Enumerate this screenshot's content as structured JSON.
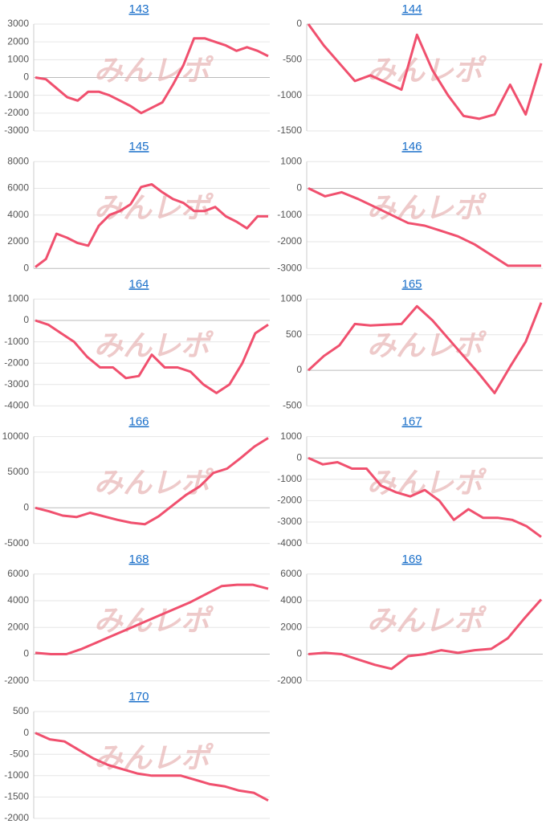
{
  "watermark": "みんレポ",
  "chart_data": [
    {
      "type": "line",
      "title": "143",
      "color": "#f0506e",
      "grid": true,
      "ylim": [
        -3000,
        3000
      ],
      "yticks": [
        3000,
        2000,
        1000,
        0,
        -1000,
        -2000,
        -3000
      ],
      "values": [
        0,
        -100,
        -600,
        -1100,
        -1300,
        -800,
        -800,
        -1000,
        -1300,
        -1600,
        -2000,
        -1700,
        -1400,
        -400,
        700,
        2200,
        2200,
        2000,
        1800,
        1500,
        1700,
        1500,
        1200
      ]
    },
    {
      "type": "line",
      "title": "144",
      "color": "#f0506e",
      "grid": true,
      "ylim": [
        -1500,
        0
      ],
      "yticks": [
        0,
        -500,
        -1000,
        -1500
      ],
      "values": [
        0,
        -300,
        -550,
        -800,
        -720,
        -820,
        -920,
        -150,
        -650,
        -1000,
        -1290,
        -1330,
        -1270,
        -850,
        -1270,
        -550
      ]
    },
    {
      "type": "line",
      "title": "145",
      "color": "#f0506e",
      "grid": true,
      "ylim": [
        0,
        8000
      ],
      "yticks": [
        8000,
        6000,
        4000,
        2000,
        0
      ],
      "values": [
        100,
        700,
        2600,
        2300,
        1900,
        1700,
        3200,
        4000,
        4300,
        4800,
        6100,
        6300,
        5700,
        5200,
        4900,
        4300,
        4300,
        4600,
        3900,
        3500,
        3000,
        3900,
        3900
      ]
    },
    {
      "type": "line",
      "title": "146",
      "color": "#f0506e",
      "grid": true,
      "ylim": [
        -3000,
        1000
      ],
      "yticks": [
        1000,
        0,
        -1000,
        -2000,
        -3000
      ],
      "values": [
        0,
        -300,
        -150,
        -400,
        -700,
        -1000,
        -1300,
        -1400,
        -1600,
        -1800,
        -2100,
        -2500,
        -2900,
        -2900,
        -2900
      ]
    },
    {
      "type": "line",
      "title": "164",
      "color": "#f0506e",
      "grid": true,
      "ylim": [
        -4000,
        1000
      ],
      "yticks": [
        1000,
        0,
        -1000,
        -2000,
        -3000,
        -4000
      ],
      "values": [
        0,
        -200,
        -600,
        -1000,
        -1700,
        -2200,
        -2200,
        -2700,
        -2600,
        -1600,
        -2200,
        -2200,
        -2400,
        -3000,
        -3400,
        -3000,
        -2000,
        -600,
        -200
      ]
    },
    {
      "type": "line",
      "title": "165",
      "color": "#f0506e",
      "grid": true,
      "ylim": [
        -500,
        1000
      ],
      "yticks": [
        1000,
        500,
        0,
        -500
      ],
      "values": [
        0,
        200,
        350,
        650,
        630,
        640,
        650,
        900,
        700,
        450,
        200,
        -50,
        -320,
        50,
        400,
        950
      ]
    },
    {
      "type": "line",
      "title": "166",
      "color": "#f0506e",
      "grid": true,
      "ylim": [
        -5000,
        10000
      ],
      "yticks": [
        10000,
        5000,
        0,
        -5000
      ],
      "values": [
        0,
        -500,
        -1100,
        -1300,
        -700,
        -1200,
        -1700,
        -2100,
        -2300,
        -1200,
        300,
        1800,
        3000,
        4900,
        5500,
        7000,
        8600,
        9800
      ]
    },
    {
      "type": "line",
      "title": "167",
      "color": "#f0506e",
      "grid": true,
      "ylim": [
        -4000,
        1000
      ],
      "yticks": [
        1000,
        0,
        -1000,
        -2000,
        -3000,
        -4000
      ],
      "values": [
        0,
        -300,
        -200,
        -500,
        -500,
        -1300,
        -1600,
        -1800,
        -1500,
        -2000,
        -2900,
        -2400,
        -2800,
        -2800,
        -2900,
        -3200,
        -3700
      ]
    },
    {
      "type": "line",
      "title": "168",
      "color": "#f0506e",
      "grid": true,
      "ylim": [
        -2000,
        6000
      ],
      "yticks": [
        6000,
        4000,
        2000,
        0,
        -2000
      ],
      "values": [
        100,
        0,
        0,
        400,
        900,
        1400,
        1900,
        2400,
        2900,
        3400,
        3900,
        4500,
        5100,
        5200,
        5200,
        4900
      ]
    },
    {
      "type": "line",
      "title": "169",
      "color": "#f0506e",
      "grid": true,
      "ylim": [
        -2000,
        6000
      ],
      "yticks": [
        6000,
        4000,
        2000,
        0,
        -2000
      ],
      "values": [
        0,
        100,
        0,
        -400,
        -800,
        -1100,
        -150,
        0,
        300,
        100,
        300,
        400,
        1200,
        2700,
        4100
      ]
    },
    {
      "type": "line",
      "title": "170",
      "color": "#f0506e",
      "grid": true,
      "ylim": [
        -2000,
        500
      ],
      "yticks": [
        500,
        0,
        -500,
        -1000,
        -1500,
        -2000
      ],
      "values": [
        0,
        -150,
        -200,
        -400,
        -600,
        -750,
        -850,
        -950,
        -1000,
        -1000,
        -1000,
        -1100,
        -1200,
        -1250,
        -1350,
        -1400,
        -1580
      ]
    }
  ]
}
